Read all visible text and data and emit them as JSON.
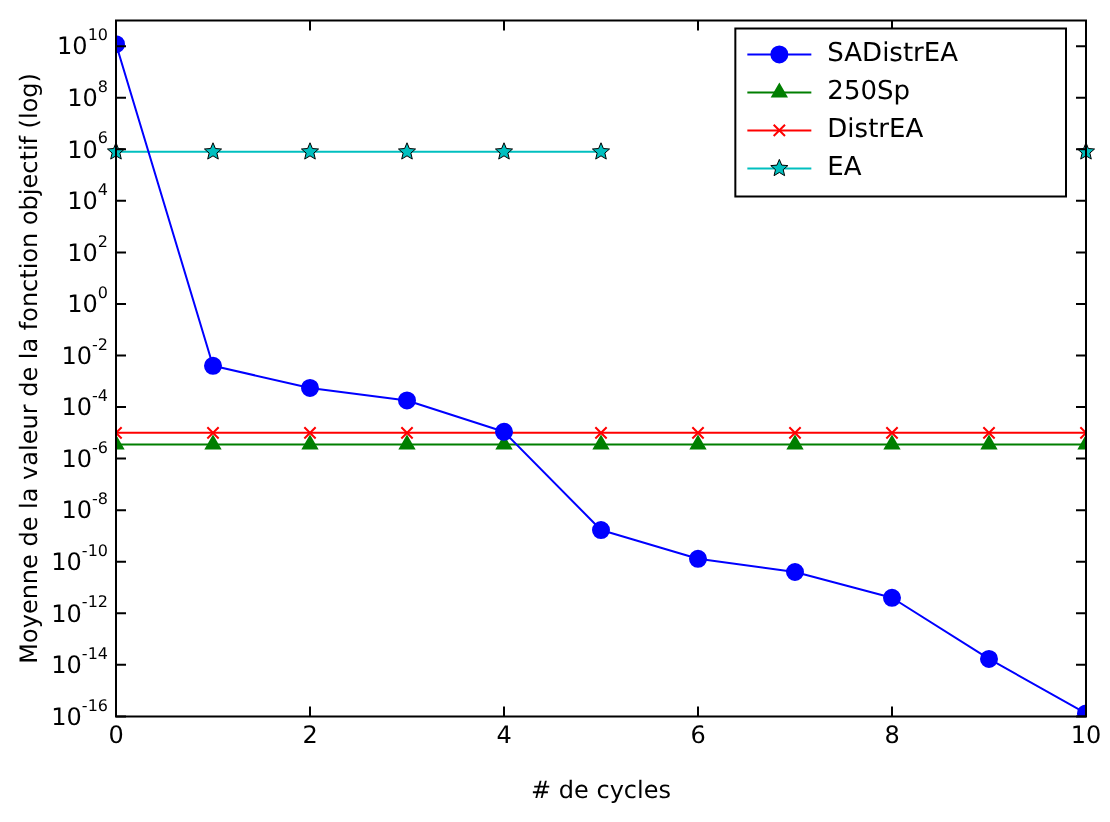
{
  "chart_data": {
    "type": "line",
    "xlabel": "# de cycles",
    "ylabel": "Moyenne de la valeur de la fonction objectif (log)",
    "x": [
      0,
      1,
      2,
      3,
      4,
      5,
      6,
      7,
      8,
      9,
      10
    ],
    "series": [
      {
        "name": "SADistrEA",
        "color": "#0000ff",
        "marker": "circle",
        "values": [
          12000000000.0,
          0.004,
          0.00055,
          0.00018,
          1.1e-05,
          1.7e-09,
          1.3e-10,
          4e-11,
          4e-12,
          1.7e-14,
          1.3e-16
        ]
      },
      {
        "name": "250Sp",
        "color": "#007f00",
        "marker": "triangle",
        "values": [
          3.5e-06,
          3.5e-06,
          3.5e-06,
          3.5e-06,
          3.5e-06,
          3.5e-06,
          3.5e-06,
          3.5e-06,
          3.5e-06,
          3.5e-06,
          3.5e-06
        ]
      },
      {
        "name": "DistrEA",
        "color": "#ff0000",
        "marker": "cross",
        "values": [
          1e-05,
          1e-05,
          1e-05,
          1e-05,
          1e-05,
          1e-05,
          1e-05,
          1e-05,
          1e-05,
          1e-05,
          1e-05
        ]
      },
      {
        "name": "EA",
        "color": "#00bfbf",
        "marker": "star",
        "values": [
          800000.0,
          800000.0,
          800000.0,
          800000.0,
          800000.0,
          800000.0,
          null,
          null,
          null,
          null,
          800000.0
        ]
      }
    ],
    "log": "y",
    "xlim": [
      0,
      10
    ],
    "xticks": [
      0,
      2,
      4,
      6,
      8,
      10
    ],
    "ylim": [
      1e-16,
      100000000000.0
    ],
    "yticks": [
      {
        "value": 1e-16,
        "label": "10$^{-16}$"
      },
      {
        "value": 1e-14,
        "label": "10$^{-14}$"
      },
      {
        "value": 1e-12,
        "label": "10$^{-12}$"
      },
      {
        "value": 1e-10,
        "label": "10$^{-10}$"
      },
      {
        "value": 1e-08,
        "label": "10$^{-8}$"
      },
      {
        "value": 1e-06,
        "label": "10$^{-6}$"
      },
      {
        "value": 0.0001,
        "label": "10$^{-4}$"
      },
      {
        "value": 0.01,
        "label": "10$^{-2}$"
      },
      {
        "value": 1,
        "label": "10$^{0}$"
      },
      {
        "value": 100.0,
        "label": "10$^{2}$"
      },
      {
        "value": 10000.0,
        "label": "10$^{4}$"
      },
      {
        "value": 1000000.0,
        "label": "10$^{6}$"
      },
      {
        "value": 100000000.0,
        "label": "10$^{8}$"
      },
      {
        "value": 10000000000.0,
        "label": "10$^{10}$"
      }
    ],
    "grid": false,
    "legend": "top right",
    "line_style": "solid"
  }
}
